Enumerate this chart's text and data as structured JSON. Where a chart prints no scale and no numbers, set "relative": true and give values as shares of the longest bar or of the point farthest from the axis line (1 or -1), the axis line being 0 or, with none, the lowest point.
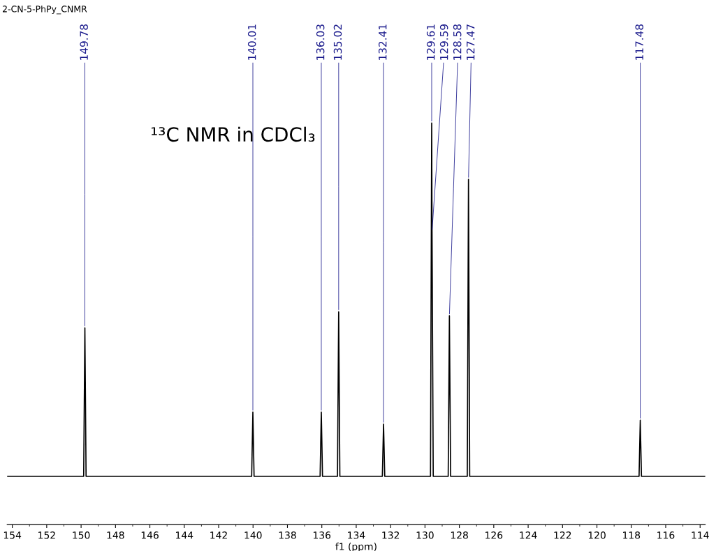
{
  "chart_data": {
    "type": "line",
    "title": "2-CN-5-PhPy_CNMR",
    "xlabel": "f1 (ppm)",
    "relative": true,
    "color": "#000000",
    "x": [
      154.3,
      149.85,
      149.78,
      149.71,
      140.08,
      140.01,
      139.94,
      136.1,
      136.03,
      135.96,
      135.09,
      135.02,
      134.95,
      132.48,
      132.41,
      132.34,
      129.68,
      129.61,
      129.59,
      129.52,
      128.65,
      128.58,
      128.51,
      127.54,
      127.47,
      127.4,
      117.55,
      117.48,
      117.41,
      113.7
    ],
    "values": [
      0.12,
      0.12,
      0.49,
      0.12,
      0.12,
      0.28,
      0.12,
      0.12,
      0.28,
      0.12,
      0.12,
      0.53,
      0.12,
      0.12,
      0.25,
      0.12,
      0.12,
      1.0,
      0.73,
      0.12,
      0.12,
      0.52,
      0.12,
      0.12,
      0.86,
      0.12,
      0.12,
      0.26,
      0.12,
      0.12
    ],
    "xlim": [
      154.3,
      113.7
    ],
    "xticks": [
      154,
      152,
      150,
      148,
      146,
      144,
      142,
      140,
      138,
      136,
      134,
      132,
      130,
      128,
      126,
      124,
      122,
      120,
      118,
      116,
      114
    ],
    "tick_labels": "x",
    "grid": false,
    "legend": false,
    "annotations": [
      {
        "text": "149.78",
        "x": 149.78,
        "y": 0.49
      },
      {
        "text": "140.01",
        "x": 140.01,
        "y": 0.28
      },
      {
        "text": "136.03",
        "x": 136.03,
        "y": 0.28
      },
      {
        "text": "135.02",
        "x": 135.02,
        "y": 0.53
      },
      {
        "text": "132.41",
        "x": 132.41,
        "y": 0.25
      },
      {
        "text": "129.61",
        "x": 129.61,
        "y": 1.0
      },
      {
        "text": "129.59",
        "x": 129.59,
        "y": 0.73
      },
      {
        "text": "128.58",
        "x": 128.58,
        "y": 0.52
      },
      {
        "text": "127.47",
        "x": 127.47,
        "y": 0.86
      },
      {
        "text": "117.48",
        "x": 117.48,
        "y": 0.26
      },
      "¹³C NMR in CDCl₃"
    ]
  }
}
